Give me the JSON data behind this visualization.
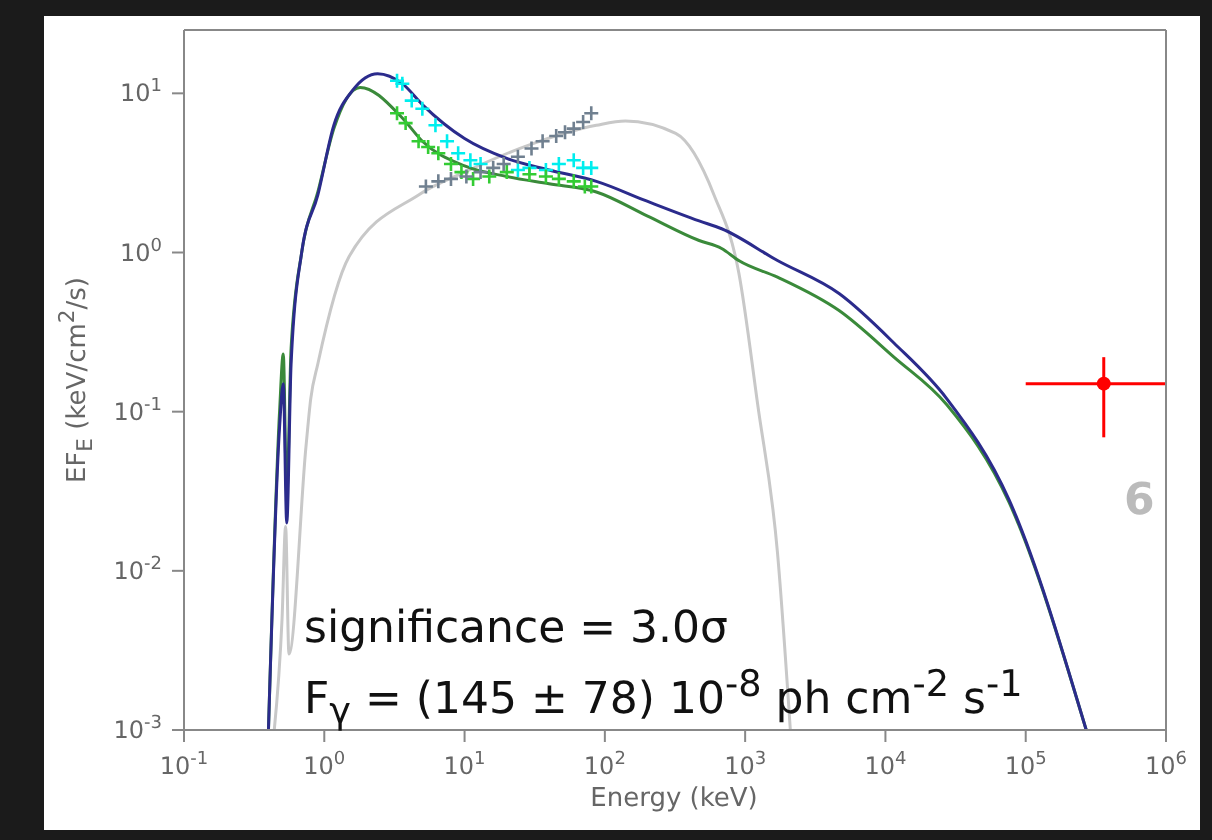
{
  "chart_data": {
    "type": "line",
    "xlabel": "Energy (keV)",
    "ylabel": "EF$_{E}$ (keV/cm$^{2}$/s)",
    "log": "xy",
    "xlim": [
      0.1,
      1000000
    ],
    "ylim": [
      0.001,
      25
    ],
    "xticks": [
      {
        "value": 0.1,
        "label": "10$^{-1}$"
      },
      {
        "value": 1,
        "label": "10$^{0}$"
      },
      {
        "value": 10,
        "label": "10$^{1}$"
      },
      {
        "value": 100,
        "label": "10$^{2}$"
      },
      {
        "value": 1000,
        "label": "10$^{3}$"
      },
      {
        "value": 10000,
        "label": "10$^{4}$"
      },
      {
        "value": 100000,
        "label": "10$^{5}$"
      },
      {
        "value": 1000000,
        "label": "10$^{6}$"
      }
    ],
    "yticks": [
      {
        "value": 0.001,
        "label": "10$^{-3}$"
      },
      {
        "value": 0.01,
        "label": "10$^{-2}$"
      },
      {
        "value": 0.1,
        "label": "10$^{-1}$"
      },
      {
        "value": 1,
        "label": "10$^{0}$"
      },
      {
        "value": 10,
        "label": "10$^{1}$"
      }
    ],
    "series": [
      {
        "color": "#c8c8c8",
        "marker": "none",
        "x": [
          0.44,
          0.5,
          0.53,
          0.56,
          0.74,
          0.8,
          0.9,
          1.5,
          4.7,
          10,
          30,
          87,
          140,
          320,
          600,
          900,
          1230,
          1700,
          2100
        ],
        "values": [
          0.001,
          0.005,
          0.019,
          0.003,
          0.06,
          0.12,
          0.2,
          0.94,
          2.3,
          3.2,
          4.8,
          6.3,
          6.7,
          5.6,
          2.3,
          0.75,
          0.11,
          0.013,
          0.001
        ]
      },
      {
        "color": "#3a8a3a",
        "marker": "none",
        "x": [
          0.4,
          0.48,
          0.51,
          0.54,
          0.58,
          0.69,
          0.9,
          1.17,
          1.8,
          3.6,
          5,
          10,
          20,
          40,
          87,
          200,
          470,
          680,
          900,
          1700,
          4700,
          11500,
          27500,
          76000,
          270000
        ],
        "values": [
          0.001,
          0.1,
          0.23,
          0.03,
          0.25,
          1.0,
          2.4,
          6.0,
          10.9,
          7,
          5,
          3.5,
          3.0,
          2.7,
          2.4,
          1.7,
          1.19,
          1.06,
          0.89,
          0.7,
          0.43,
          0.22,
          0.11,
          0.027,
          0.001
        ]
      },
      {
        "color": "#2b2b8c",
        "marker": "none",
        "x": [
          0.4,
          0.48,
          0.51,
          0.54,
          0.58,
          0.69,
          0.9,
          1.17,
          1.6,
          2.4,
          3.6,
          5,
          10,
          20,
          40,
          87,
          200,
          470,
          680,
          1700,
          4700,
          11500,
          27500,
          76000,
          270000
        ],
        "values": [
          0.001,
          0.08,
          0.15,
          0.02,
          0.2,
          1.0,
          2.3,
          6.3,
          10.5,
          13.3,
          11.5,
          8.5,
          5.2,
          3.9,
          3.3,
          2.8,
          2.1,
          1.58,
          1.41,
          0.89,
          0.55,
          0.27,
          0.12,
          0.028,
          0.001
        ]
      },
      {
        "type": "scatter",
        "color": "#00eeee",
        "marker": "cross",
        "x": [
          3.3,
          3.6,
          4.2,
          5,
          6.2,
          7.5,
          9,
          11,
          13,
          18,
          24,
          29,
          38,
          47,
          60,
          70,
          80
        ],
        "values": [
          12,
          11.5,
          9,
          8,
          6.3,
          5,
          4.2,
          3.8,
          3.6,
          null,
          3.3,
          3.4,
          3.3,
          3.6,
          3.8,
          3.4,
          3.4
        ]
      },
      {
        "type": "scatter",
        "color": "#33cc33",
        "marker": "cross",
        "x": [
          3.3,
          3.8,
          4.7,
          5.5,
          6.5,
          8,
          9.5,
          11.5,
          15,
          20,
          29,
          38,
          47,
          60,
          72,
          80
        ],
        "values": [
          7.5,
          6.5,
          5,
          4.6,
          4.2,
          3.6,
          3.2,
          2.9,
          3.0,
          3.2,
          3.1,
          3.0,
          2.9,
          2.8,
          2.6,
          2.6
        ]
      },
      {
        "type": "scatter",
        "color": "#708090",
        "marker": "cross",
        "x": [
          5.3,
          6.5,
          8,
          10.3,
          13,
          16,
          19,
          24,
          30,
          36,
          45,
          52,
          60,
          70,
          80
        ],
        "values": [
          2.6,
          2.8,
          2.9,
          3.0,
          3.2,
          3.4,
          3.6,
          4.0,
          4.5,
          5,
          5.4,
          5.7,
          6,
          6.6,
          7.5
        ]
      },
      {
        "type": "scatter",
        "color": "#ff0000",
        "marker": "circle",
        "x": [
          360000
        ],
        "values": [
          0.15
        ],
        "errors": [
          [
            0.069,
            0.22
          ]
        ],
        "xerrors": [
          [
            100000,
            1000000
          ]
        ]
      }
    ],
    "annotations": [
      "significance = 3.0σ",
      "F$_{γ}$ = (145 ± 78) 10$^{-8}$ ph cm$^{-2}$ s$^{-1}$",
      "6"
    ]
  }
}
